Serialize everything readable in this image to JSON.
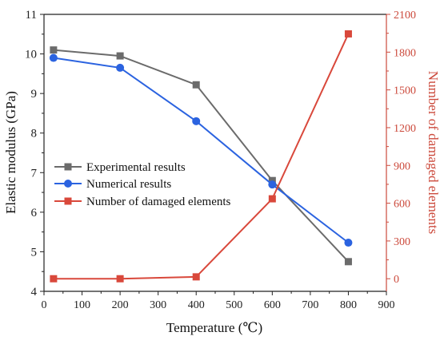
{
  "chart_data": {
    "type": "line",
    "xlabel": "Temperature (℃)",
    "ylabel_left": "Elastic modulus (GPa)",
    "ylabel_right": "Number of damaged elements",
    "xlim": [
      0,
      900
    ],
    "ylim_left": [
      4,
      11
    ],
    "ylim_right": [
      -100,
      2100
    ],
    "x_ticks": [
      0,
      100,
      200,
      300,
      400,
      500,
      600,
      700,
      800,
      900
    ],
    "y_ticks_left": [
      4,
      5,
      6,
      7,
      8,
      9,
      10,
      11
    ],
    "y_ticks_right": [
      0,
      300,
      600,
      900,
      1200,
      1500,
      1800,
      2100
    ],
    "grid": false,
    "legend_position": "center-left",
    "series": [
      {
        "name": "Experimental results",
        "axis": "left",
        "color": "#6b6b6b",
        "marker": "square",
        "x": [
          25,
          200,
          400,
          600,
          800
        ],
        "y": [
          10.1,
          9.95,
          9.22,
          6.8,
          4.75
        ]
      },
      {
        "name": "Numerical results",
        "axis": "left",
        "color": "#2b63e0",
        "marker": "circle",
        "x": [
          25,
          200,
          400,
          600,
          800
        ],
        "y": [
          9.9,
          9.65,
          8.3,
          6.7,
          5.23
        ]
      },
      {
        "name": "Number of damaged elements",
        "axis": "right",
        "color": "#d9483b",
        "marker": "square",
        "x": [
          25,
          200,
          400,
          600,
          800
        ],
        "y": [
          0,
          0,
          15,
          635,
          1945
        ]
      }
    ]
  }
}
